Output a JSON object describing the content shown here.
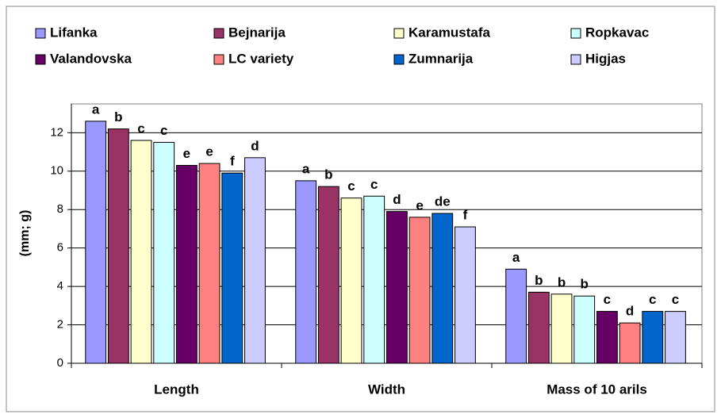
{
  "chart_data": {
    "type": "bar",
    "categories": [
      "Length",
      "Width",
      "Mass of 10 arils"
    ],
    "y_label": "(mm; g)",
    "ylim": [
      0,
      13.5
    ],
    "yticks": [
      0,
      2,
      4,
      6,
      8,
      10,
      12
    ],
    "grid": true,
    "series": [
      {
        "name": "Lifanka",
        "color": "#9999ff",
        "values": [
          12.6,
          9.5,
          4.9
        ],
        "value_labels": [
          "a",
          "a",
          "a"
        ]
      },
      {
        "name": "Bejnarija",
        "color": "#993366",
        "values": [
          12.2,
          9.2,
          3.7
        ],
        "value_labels": [
          "b",
          "b",
          "b"
        ]
      },
      {
        "name": "Karamustafa",
        "color": "#ffffcc",
        "values": [
          11.6,
          8.6,
          3.6
        ],
        "value_labels": [
          "c",
          "c",
          "b"
        ]
      },
      {
        "name": "Ropkavac",
        "color": "#ccffff",
        "values": [
          11.5,
          8.7,
          3.5
        ],
        "value_labels": [
          "c",
          "c",
          "b"
        ]
      },
      {
        "name": "Valandovska",
        "color": "#660066",
        "values": [
          10.3,
          7.9,
          2.7
        ],
        "value_labels": [
          "e",
          "d",
          "c"
        ]
      },
      {
        "name": "LC variety",
        "color": "#ff8080",
        "values": [
          10.4,
          7.6,
          2.1
        ],
        "value_labels": [
          "e",
          "e",
          "d"
        ]
      },
      {
        "name": "Zumnarija",
        "color": "#0066cc",
        "values": [
          9.9,
          7.8,
          2.7
        ],
        "value_labels": [
          "f",
          "de",
          "c"
        ]
      },
      {
        "name": "Higjas",
        "color": "#ccccff",
        "values": [
          10.7,
          7.1,
          2.7
        ],
        "value_labels": [
          "d",
          "f",
          "c"
        ]
      }
    ]
  }
}
